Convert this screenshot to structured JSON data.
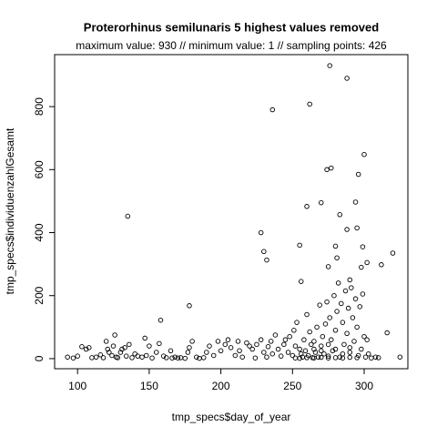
{
  "chart_data": {
    "type": "scatter",
    "title": "Proterorhinus semilunaris  5 highest values removed",
    "subtitle": "maximum value: 930  //  minimum value: 1  // sampling points: 426",
    "x_label": "tmp_specs$day_of_year",
    "y_label": "tmp_specs$individuenzahlGesamt",
    "xlim": [
      84,
      330.5
    ],
    "ylim": [
      -32,
      965
    ],
    "xticks": [
      100,
      150,
      200,
      250,
      300
    ],
    "yticks": [
      0,
      200,
      400,
      600,
      800
    ],
    "color": "#000000",
    "x": [
      276,
      288,
      262,
      236,
      300,
      296,
      277,
      274,
      294,
      270,
      260,
      283,
      135,
      295,
      288,
      228,
      299,
      280,
      255,
      230,
      232,
      302,
      320,
      312,
      298,
      281,
      275,
      256,
      290,
      178,
      158,
      316,
      325,
      93,
      97,
      100,
      103,
      106,
      108,
      110,
      113,
      116,
      118,
      120,
      121,
      122,
      124,
      125,
      126,
      127,
      128,
      130,
      131,
      133,
      134,
      136,
      138,
      140,
      142,
      145,
      147,
      148,
      150,
      152,
      155,
      157,
      160,
      162,
      165,
      166,
      168,
      170,
      172,
      175,
      177,
      178,
      180,
      183,
      185,
      188,
      190,
      192,
      195,
      198,
      200,
      203,
      205,
      207,
      210,
      212,
      213,
      215,
      218,
      220,
      222,
      224,
      225,
      228,
      230,
      232,
      233,
      235,
      236,
      238,
      240,
      242,
      244,
      245,
      247,
      248,
      250,
      251,
      252,
      253,
      255,
      256,
      257,
      258,
      259,
      260,
      261,
      262,
      263,
      264,
      265,
      266,
      267,
      268,
      269,
      270,
      271,
      272,
      273,
      274,
      275,
      276,
      277,
      278,
      279,
      280,
      281,
      282,
      283,
      284,
      285,
      286,
      287,
      288,
      289,
      290,
      291,
      292,
      293,
      294,
      295,
      296,
      297,
      298,
      299,
      300,
      301,
      302,
      303,
      305,
      308,
      310,
      252,
      255,
      260,
      265,
      270,
      275,
      280,
      285,
      290,
      295,
      270,
      280,
      285,
      290,
      275,
      265
    ],
    "values": [
      930,
      890,
      808,
      790,
      648,
      585,
      605,
      600,
      497,
      495,
      483,
      457,
      452,
      415,
      410,
      400,
      355,
      357,
      360,
      340,
      313,
      305,
      335,
      298,
      290,
      320,
      292,
      245,
      250,
      168,
      122,
      82,
      5,
      5,
      2,
      8,
      38,
      30,
      35,
      3,
      5,
      12,
      3,
      55,
      30,
      20,
      10,
      40,
      75,
      5,
      3,
      20,
      30,
      35,
      8,
      45,
      3,
      15,
      8,
      5,
      65,
      10,
      40,
      2,
      20,
      48,
      8,
      3,
      25,
      2,
      5,
      2,
      3,
      1,
      20,
      35,
      55,
      5,
      1,
      3,
      20,
      40,
      10,
      55,
      25,
      45,
      60,
      35,
      10,
      55,
      25,
      5,
      50,
      40,
      30,
      2,
      45,
      60,
      20,
      5,
      38,
      55,
      15,
      75,
      30,
      8,
      45,
      60,
      20,
      70,
      10,
      90,
      40,
      115,
      30,
      15,
      5,
      60,
      25,
      140,
      10,
      85,
      45,
      3,
      55,
      20,
      100,
      5,
      170,
      40,
      70,
      15,
      110,
      180,
      8,
      130,
      60,
      25,
      200,
      90,
      150,
      240,
      5,
      175,
      115,
      45,
      215,
      80,
      160,
      20,
      225,
      130,
      55,
      190,
      100,
      10,
      165,
      30,
      205,
      70,
      5,
      60,
      15,
      2,
      5,
      3,
      2,
      1,
      3,
      2,
      4,
      2,
      3,
      2,
      4,
      3,
      25,
      30,
      15,
      35,
      45,
      30
    ]
  }
}
